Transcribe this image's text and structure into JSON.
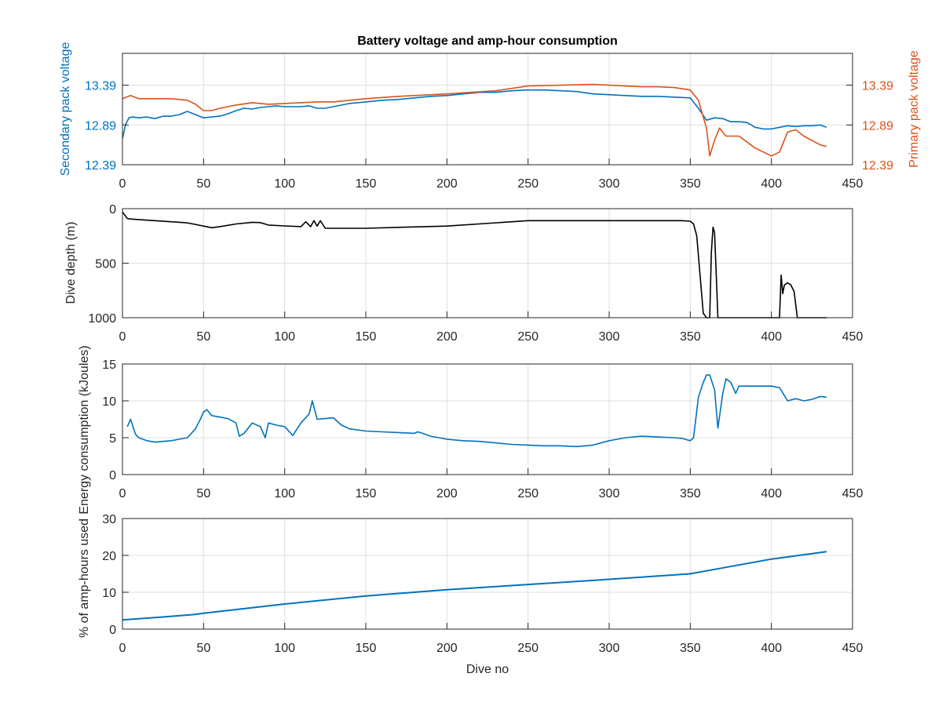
{
  "colors": {
    "blue": "#0072BD",
    "orange": "#D95319",
    "black": "#000000",
    "axis": "#262626",
    "grid": "#dfdfdf"
  },
  "chart_data": [
    {
      "type": "line",
      "title": "Battery voltage and amp-hour consumption",
      "xlabel": "",
      "ylabel": "Secondary pack voltage",
      "ylabel_right": "Primary pack voltage",
      "xlim": [
        0,
        450
      ],
      "ylim": [
        12.39,
        13.79
      ],
      "ylim_right": [
        12.39,
        13.79
      ],
      "xticks": [
        "0",
        "50",
        "100",
        "150",
        "200",
        "250",
        "300",
        "350",
        "400",
        "450"
      ],
      "yticks": [
        "12.39",
        "12.89",
        "13.39"
      ],
      "yticks_right": [
        "12.39",
        "12.89",
        "13.39"
      ],
      "grid": true,
      "series": [
        {
          "axis": "left",
          "color": "#0072BD",
          "x": [
            0,
            2,
            4,
            6,
            10,
            15,
            20,
            25,
            30,
            35,
            40,
            45,
            50,
            55,
            60,
            65,
            70,
            75,
            80,
            85,
            90,
            95,
            100,
            105,
            110,
            115,
            120,
            125,
            130,
            140,
            150,
            160,
            170,
            180,
            190,
            200,
            210,
            220,
            230,
            240,
            250,
            260,
            270,
            280,
            290,
            300,
            310,
            320,
            330,
            340,
            350,
            355,
            360,
            365,
            370,
            375,
            380,
            385,
            390,
            395,
            400,
            405,
            410,
            415,
            420,
            425,
            430,
            434
          ],
          "y": [
            12.72,
            12.9,
            12.98,
            12.99,
            12.98,
            12.99,
            12.97,
            13.0,
            13.0,
            13.02,
            13.06,
            13.02,
            12.98,
            12.99,
            13.0,
            13.03,
            13.07,
            13.1,
            13.09,
            13.11,
            13.12,
            13.13,
            13.12,
            13.12,
            13.12,
            13.13,
            13.1,
            13.1,
            13.12,
            13.16,
            13.18,
            13.2,
            13.21,
            13.23,
            13.25,
            13.26,
            13.28,
            13.3,
            13.3,
            13.32,
            13.33,
            13.33,
            13.32,
            13.31,
            13.28,
            13.27,
            13.26,
            13.25,
            13.25,
            13.24,
            13.23,
            13.1,
            12.95,
            12.98,
            12.97,
            12.93,
            12.93,
            12.92,
            12.86,
            12.84,
            12.84,
            12.86,
            12.88,
            12.87,
            12.88,
            12.88,
            12.89,
            12.86
          ]
        },
        {
          "axis": "right",
          "color": "#D95319",
          "x": [
            0,
            5,
            10,
            20,
            30,
            40,
            45,
            50,
            55,
            60,
            70,
            80,
            90,
            100,
            110,
            120,
            130,
            140,
            150,
            170,
            200,
            230,
            250,
            270,
            290,
            300,
            310,
            320,
            330,
            340,
            350,
            355,
            360,
            362,
            365,
            368,
            372,
            380,
            390,
            400,
            405,
            410,
            415,
            420,
            430,
            434
          ],
          "y": [
            13.22,
            13.26,
            13.22,
            13.22,
            13.22,
            13.2,
            13.15,
            13.07,
            13.07,
            13.1,
            13.14,
            13.17,
            13.15,
            13.16,
            13.17,
            13.18,
            13.18,
            13.2,
            13.22,
            13.25,
            13.28,
            13.32,
            13.38,
            13.39,
            13.4,
            13.39,
            13.38,
            13.37,
            13.37,
            13.36,
            13.33,
            13.2,
            12.85,
            12.5,
            12.7,
            12.85,
            12.75,
            12.75,
            12.6,
            12.5,
            12.55,
            12.8,
            12.83,
            12.75,
            12.64,
            12.62
          ]
        }
      ]
    },
    {
      "type": "line",
      "title": "",
      "xlabel": "",
      "ylabel": "Dive depth (m)",
      "xlim": [
        0,
        450
      ],
      "ylim": [
        0,
        1000
      ],
      "y_reversed": true,
      "xticks": [
        "0",
        "50",
        "100",
        "150",
        "200",
        "250",
        "300",
        "350",
        "400",
        "450"
      ],
      "yticks": [
        "0",
        "500",
        "1000"
      ],
      "grid": true,
      "series": [
        {
          "color": "#000000",
          "x": [
            0,
            3,
            5,
            10,
            20,
            30,
            40,
            50,
            55,
            60,
            70,
            80,
            85,
            90,
            100,
            110,
            113,
            116,
            118,
            120,
            122,
            125,
            130,
            150,
            200,
            250,
            300,
            340,
            345,
            350,
            352,
            354,
            356,
            358,
            360,
            362,
            363,
            364,
            365,
            366,
            367,
            368,
            369,
            370,
            380,
            390,
            400,
            405,
            406,
            407,
            408,
            410,
            412,
            414,
            416,
            418,
            420,
            425,
            430,
            434
          ],
          "y": [
            30,
            90,
            95,
            100,
            110,
            120,
            130,
            160,
            175,
            165,
            140,
            125,
            128,
            150,
            158,
            165,
            120,
            165,
            110,
            160,
            110,
            180,
            180,
            180,
            160,
            110,
            110,
            110,
            110,
            115,
            140,
            250,
            600,
            960,
            1000,
            1000,
            400,
            170,
            220,
            600,
            1000,
            1000,
            1000,
            1000,
            1000,
            1000,
            1000,
            1000,
            610,
            780,
            700,
            680,
            700,
            760,
            1000,
            1000,
            1000,
            1000,
            1000,
            1000
          ]
        }
      ]
    },
    {
      "type": "line",
      "title": "",
      "xlabel": "",
      "ylabel": "Energy consumption (kJoules)",
      "xlim": [
        0,
        450
      ],
      "ylim": [
        0,
        15
      ],
      "xticks": [
        "0",
        "50",
        "100",
        "150",
        "200",
        "250",
        "300",
        "350",
        "400",
        "450"
      ],
      "yticks": [
        "0",
        "5",
        "10",
        "15"
      ],
      "grid": true,
      "series": [
        {
          "color": "#0072BD",
          "x": [
            3,
            5,
            8,
            10,
            15,
            20,
            25,
            30,
            35,
            40,
            45,
            48,
            50,
            52,
            55,
            60,
            65,
            70,
            72,
            75,
            80,
            85,
            88,
            90,
            95,
            100,
            105,
            110,
            115,
            117,
            120,
            125,
            130,
            135,
            140,
            150,
            160,
            170,
            180,
            182,
            185,
            190,
            200,
            210,
            220,
            230,
            240,
            250,
            260,
            270,
            280,
            290,
            300,
            310,
            320,
            330,
            340,
            345,
            350,
            352,
            355,
            358,
            360,
            362,
            365,
            367,
            370,
            372,
            375,
            378,
            380,
            390,
            400,
            405,
            410,
            415,
            420,
            425,
            430,
            434
          ],
          "y": [
            6.5,
            7.5,
            5.5,
            5.0,
            4.6,
            4.4,
            4.5,
            4.6,
            4.8,
            5.0,
            6.2,
            7.5,
            8.5,
            8.8,
            8.0,
            7.8,
            7.6,
            7.0,
            5.2,
            5.6,
            7.0,
            6.5,
            5.0,
            7.0,
            6.7,
            6.5,
            5.3,
            7.0,
            8.2,
            10.0,
            7.5,
            7.6,
            7.7,
            6.7,
            6.2,
            5.9,
            5.8,
            5.7,
            5.6,
            5.8,
            5.6,
            5.2,
            4.8,
            4.6,
            4.5,
            4.3,
            4.1,
            4.0,
            3.9,
            3.9,
            3.8,
            4.0,
            4.6,
            5.0,
            5.2,
            5.1,
            5.0,
            4.9,
            4.6,
            5.0,
            10.5,
            12.5,
            13.5,
            13.5,
            11.5,
            6.3,
            11.0,
            13.0,
            12.5,
            11.0,
            12.0,
            12.0,
            12.0,
            11.8,
            10.0,
            10.3,
            10.0,
            10.2,
            10.6,
            10.5
          ]
        }
      ]
    },
    {
      "type": "line",
      "title": "",
      "xlabel": "Dive no",
      "ylabel": "% of amp-hours used",
      "xlim": [
        0,
        450
      ],
      "ylim": [
        0,
        30
      ],
      "xticks": [
        "0",
        "50",
        "100",
        "150",
        "200",
        "250",
        "300",
        "350",
        "400",
        "450"
      ],
      "yticks": [
        "0",
        "10",
        "20",
        "30"
      ],
      "grid": true,
      "series": [
        {
          "color": "#0072BD",
          "x": [
            0,
            25,
            45,
            50,
            100,
            150,
            200,
            250,
            300,
            350,
            360,
            400,
            434
          ],
          "y": [
            2.5,
            3.3,
            4.0,
            4.3,
            6.8,
            9.0,
            10.7,
            12.1,
            13.5,
            15.0,
            15.8,
            19.0,
            21.0
          ]
        }
      ]
    }
  ]
}
